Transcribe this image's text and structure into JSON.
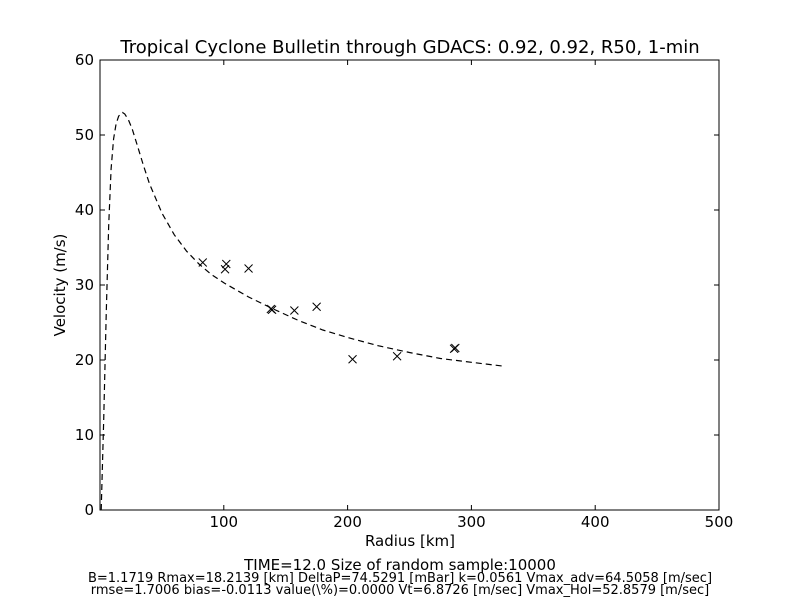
{
  "chart_data": {
    "type": "scatter",
    "title": "Tropical Cyclone Bulletin through GDACS: 0.92, 0.92, R50, 1-min",
    "xlabel": "Radius [km]",
    "ylabel": "Velocity (m/s)",
    "xlim": [
      0,
      500
    ],
    "ylim": [
      0,
      60
    ],
    "x_ticks": [
      100,
      200,
      300,
      400,
      500
    ],
    "y_ticks": [
      0,
      10,
      20,
      30,
      40,
      50,
      60
    ],
    "grid": false,
    "series": [
      {
        "style": "cross-markers",
        "points": [
          [
            83,
            33.0
          ],
          [
            101,
            32.1
          ],
          [
            102,
            32.8
          ],
          [
            120,
            32.2
          ],
          [
            138,
            26.8
          ],
          [
            139,
            26.7
          ],
          [
            157,
            26.6
          ],
          [
            175,
            27.1
          ],
          [
            204,
            20.1
          ],
          [
            240,
            20.5
          ],
          [
            286,
            21.5
          ],
          [
            287,
            21.6
          ]
        ]
      },
      {
        "style": "dashed-line",
        "points": [
          [
            1,
            0
          ],
          [
            3,
            12
          ],
          [
            5,
            26
          ],
          [
            7,
            38
          ],
          [
            9,
            45.5
          ],
          [
            11,
            49.5
          ],
          [
            13,
            51.5
          ],
          [
            15,
            52.5
          ],
          [
            17,
            52.9
          ],
          [
            18.2,
            53.0
          ],
          [
            20,
            52.8
          ],
          [
            23,
            52.0
          ],
          [
            26,
            50.8
          ],
          [
            30,
            48.7
          ],
          [
            35,
            46.0
          ],
          [
            40,
            43.5
          ],
          [
            50,
            39.6
          ],
          [
            60,
            36.7
          ],
          [
            70,
            34.5
          ],
          [
            80,
            32.8
          ],
          [
            90,
            31.4
          ],
          [
            100,
            30.3
          ],
          [
            120,
            28.4
          ],
          [
            140,
            26.8
          ],
          [
            160,
            25.3
          ],
          [
            180,
            24.0
          ],
          [
            200,
            23.0
          ],
          [
            225,
            21.9
          ],
          [
            250,
            21.0
          ],
          [
            275,
            20.2
          ],
          [
            300,
            19.7
          ],
          [
            325,
            19.2
          ]
        ]
      }
    ],
    "footer": {
      "line1": "TIME=12.0      Size of random sample:10000",
      "line2": "B=1.1719 Rmax=18.2139 [km]  DeltaP=74.5291 [mBar] k=0.0561 Vmax_adv=64.5058 [m/sec]",
      "line3": "rmse=1.7006 bias=-0.0113 value(\\%)=0.0000 Vt=6.8726 [m/sec] Vmax_Hol=52.8579 [m/sec]"
    },
    "colors": {
      "axes": "#000000",
      "markers": "#000000",
      "curve": "#000000",
      "background": "#ffffff"
    }
  }
}
